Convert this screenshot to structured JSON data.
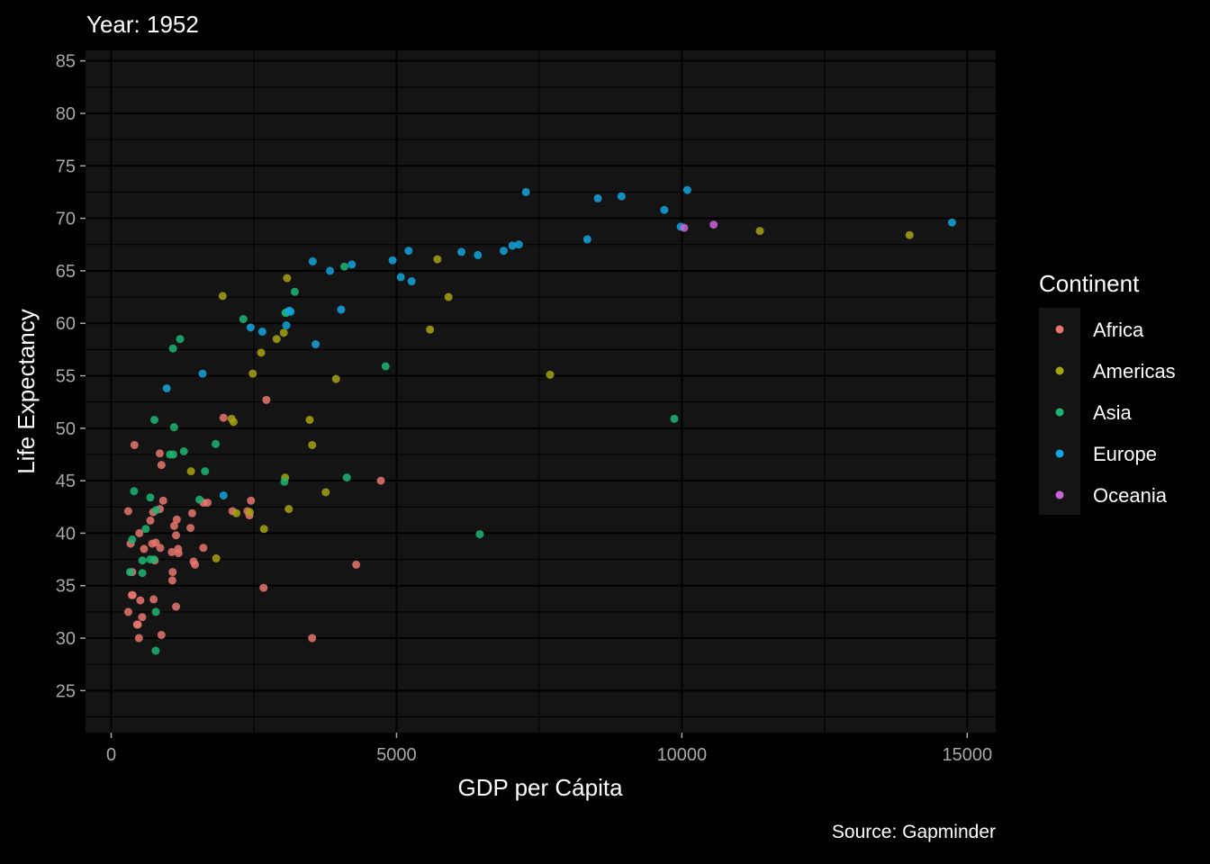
{
  "chart_data": {
    "type": "scatter",
    "title": "Year: 1952",
    "xlabel": "GDP per Cápita",
    "ylabel": "Life Expectancy",
    "caption": "Source: Gapminder",
    "xlim": [
      -450,
      15500
    ],
    "ylim": [
      21,
      86
    ],
    "x_ticks": [
      0,
      5000,
      10000,
      15000
    ],
    "x_tick_labels": [
      "0",
      "5000",
      "10000",
      "15000"
    ],
    "y_ticks": [
      25,
      30,
      35,
      40,
      45,
      50,
      55,
      60,
      65,
      70,
      75,
      80,
      85
    ],
    "y_tick_labels": [
      "25",
      "30",
      "35",
      "40",
      "45",
      "50",
      "55",
      "60",
      "65",
      "70",
      "75",
      "80",
      "85"
    ],
    "grid": true,
    "legend": {
      "title": "Continent",
      "position": "right",
      "entries": [
        {
          "name": "Africa",
          "color": "#e7766d"
        },
        {
          "name": "Americas",
          "color": "#a5a312"
        },
        {
          "name": "Asia",
          "color": "#1cb573"
        },
        {
          "name": "Europe",
          "color": "#13a5dd"
        },
        {
          "name": "Oceania",
          "color": "#c964d6"
        }
      ]
    },
    "series": [
      {
        "name": "Africa",
        "color": "#e7766d",
        "points": [
          {
            "x": 2449,
            "y": 43.1
          },
          {
            "x": 3521,
            "y": 30.0
          },
          {
            "x": 1063,
            "y": 38.2
          },
          {
            "x": 851,
            "y": 47.6
          },
          {
            "x": 543,
            "y": 32.0
          },
          {
            "x": 339,
            "y": 39.0
          },
          {
            "x": 1173,
            "y": 38.5
          },
          {
            "x": 1071,
            "y": 35.5
          },
          {
            "x": 1179,
            "y": 38.1
          },
          {
            "x": 1103,
            "y": 40.7
          },
          {
            "x": 781,
            "y": 39.1
          },
          {
            "x": 2126,
            "y": 42.1
          },
          {
            "x": 1389,
            "y": 40.5
          },
          {
            "x": 2670,
            "y": 34.8
          },
          {
            "x": 1419,
            "y": 41.9
          },
          {
            "x": 375,
            "y": 34.1
          },
          {
            "x": 362,
            "y": 34.1
          },
          {
            "x": 4293,
            "y": 37.0
          },
          {
            "x": 485,
            "y": 30.0
          },
          {
            "x": 911,
            "y": 43.1
          },
          {
            "x": 510,
            "y": 33.6
          },
          {
            "x": 299,
            "y": 32.5
          },
          {
            "x": 853,
            "y": 42.3
          },
          {
            "x": 298,
            "y": 42.1
          },
          {
            "x": 575,
            "y": 38.5
          },
          {
            "x": 2388,
            "y": 42.1
          },
          {
            "x": 1443,
            "y": 37.3
          },
          {
            "x": 369,
            "y": 36.3
          },
          {
            "x": 452,
            "y": 31.3
          },
          {
            "x": 743,
            "y": 33.7
          },
          {
            "x": 1968,
            "y": 51.0
          },
          {
            "x": 1688,
            "y": 42.9
          },
          {
            "x": 468,
            "y": 31.3
          },
          {
            "x": 2423,
            "y": 41.7
          },
          {
            "x": 762,
            "y": 37.4
          },
          {
            "x": 1077,
            "y": 36.3
          },
          {
            "x": 2719,
            "y": 52.7
          },
          {
            "x": 493,
            "y": 40.0
          },
          {
            "x": 880,
            "y": 46.5
          },
          {
            "x": 1136,
            "y": 33.0
          },
          {
            "x": 880,
            "y": 30.3
          },
          {
            "x": 1616,
            "y": 42.9
          },
          {
            "x": 1136,
            "y": 39.8
          },
          {
            "x": 4725,
            "y": 45.0
          },
          {
            "x": 1615,
            "y": 38.6
          },
          {
            "x": 1149,
            "y": 41.3
          },
          {
            "x": 718,
            "y": 39.0
          },
          {
            "x": 859,
            "y": 38.6
          },
          {
            "x": 1469,
            "y": 37.0
          },
          {
            "x": 735,
            "y": 42.0
          },
          {
            "x": 407,
            "y": 48.4
          },
          {
            "x": 686,
            "y": 41.2
          }
        ]
      },
      {
        "name": "Americas",
        "color": "#a5a312",
        "points": [
          {
            "x": 5911,
            "y": 62.5
          },
          {
            "x": 2677,
            "y": 40.4
          },
          {
            "x": 2109,
            "y": 50.9
          },
          {
            "x": 11367,
            "y": 68.8
          },
          {
            "x": 3940,
            "y": 54.7
          },
          {
            "x": 2144,
            "y": 50.6
          },
          {
            "x": 2627,
            "y": 57.2
          },
          {
            "x": 5587,
            "y": 59.4
          },
          {
            "x": 1398,
            "y": 45.9
          },
          {
            "x": 3522,
            "y": 48.4
          },
          {
            "x": 3048,
            "y": 45.3
          },
          {
            "x": 2428,
            "y": 42.0
          },
          {
            "x": 1840,
            "y": 37.6
          },
          {
            "x": 2195,
            "y": 41.9
          },
          {
            "x": 2899,
            "y": 58.5
          },
          {
            "x": 3478,
            "y": 50.8
          },
          {
            "x": 3112,
            "y": 42.3
          },
          {
            "x": 2480,
            "y": 55.2
          },
          {
            "x": 1953,
            "y": 62.6
          },
          {
            "x": 3759,
            "y": 43.9
          },
          {
            "x": 3082,
            "y": 64.3
          },
          {
            "x": 3024,
            "y": 59.1
          },
          {
            "x": 13990,
            "y": 68.4
          },
          {
            "x": 5716,
            "y": 66.1
          },
          {
            "x": 7690,
            "y": 55.1
          }
        ]
      },
      {
        "name": "Asia",
        "color": "#1cb573",
        "points": [
          {
            "x": 779,
            "y": 28.8
          },
          {
            "x": 9867,
            "y": 50.9
          },
          {
            "x": 684,
            "y": 37.5
          },
          {
            "x": 368,
            "y": 39.4
          },
          {
            "x": 400,
            "y": 44.0
          },
          {
            "x": 3054,
            "y": 61.0
          },
          {
            "x": 547,
            "y": 37.4
          },
          {
            "x": 750,
            "y": 37.5
          },
          {
            "x": 3035,
            "y": 44.9
          },
          {
            "x": 4129,
            "y": 45.3
          },
          {
            "x": 4086,
            "y": 65.4
          },
          {
            "x": 3217,
            "y": 63.0
          },
          {
            "x": 1547,
            "y": 43.2
          },
          {
            "x": 1088,
            "y": 47.5
          },
          {
            "x": 1030,
            "y": 47.5
          },
          {
            "x": 1831,
            "y": 48.5
          },
          {
            "x": 786,
            "y": 42.2
          },
          {
            "x": 331,
            "y": 36.3
          },
          {
            "x": 545,
            "y": 36.2
          },
          {
            "x": 685,
            "y": 43.4
          },
          {
            "x": 1273,
            "y": 47.8
          },
          {
            "x": 6459,
            "y": 39.9
          },
          {
            "x": 2315,
            "y": 60.4
          },
          {
            "x": 1083,
            "y": 57.6
          },
          {
            "x": 1644,
            "y": 45.9
          },
          {
            "x": 757,
            "y": 50.8
          },
          {
            "x": 1207,
            "y": 58.5
          },
          {
            "x": 1101,
            "y": 50.1
          },
          {
            "x": 605,
            "y": 40.4
          },
          {
            "x": 4808,
            "y": 55.9
          },
          {
            "x": 782,
            "y": 32.5
          },
          {
            "x": 3067,
            "y": 61.0
          }
        ]
      },
      {
        "name": "Europe",
        "color": "#13a5dd",
        "points": [
          {
            "x": 1601,
            "y": 55.2
          },
          {
            "x": 6137,
            "y": 66.8
          },
          {
            "x": 8343,
            "y": 68.0
          },
          {
            "x": 973,
            "y": 53.8
          },
          {
            "x": 2444,
            "y": 59.6
          },
          {
            "x": 3119,
            "y": 61.2
          },
          {
            "x": 6877,
            "y": 66.9
          },
          {
            "x": 9692,
            "y": 70.8
          },
          {
            "x": 6425,
            "y": 66.5
          },
          {
            "x": 7030,
            "y": 67.4
          },
          {
            "x": 7144,
            "y": 67.5
          },
          {
            "x": 3531,
            "y": 65.9
          },
          {
            "x": 5264,
            "y": 64.0
          },
          {
            "x": 7268,
            "y": 72.5
          },
          {
            "x": 5211,
            "y": 66.9
          },
          {
            "x": 4931,
            "y": 66.0
          },
          {
            "x": 2648,
            "y": 59.2
          },
          {
            "x": 8942,
            "y": 72.1
          },
          {
            "x": 10095,
            "y": 72.7
          },
          {
            "x": 4029,
            "y": 61.3
          },
          {
            "x": 3069,
            "y": 59.8
          },
          {
            "x": 3144,
            "y": 61.1
          },
          {
            "x": 3582,
            "y": 58.0
          },
          {
            "x": 4216,
            "y": 65.6
          },
          {
            "x": 5074,
            "y": 64.4
          },
          {
            "x": 3834,
            "y": 65.0
          },
          {
            "x": 8528,
            "y": 71.9
          },
          {
            "x": 14734,
            "y": 69.6
          },
          {
            "x": 1969,
            "y": 43.6
          },
          {
            "x": 9980,
            "y": 69.2
          }
        ]
      },
      {
        "name": "Oceania",
        "color": "#c964d6",
        "points": [
          {
            "x": 10040,
            "y": 69.1
          },
          {
            "x": 10557,
            "y": 69.4
          }
        ]
      }
    ]
  }
}
